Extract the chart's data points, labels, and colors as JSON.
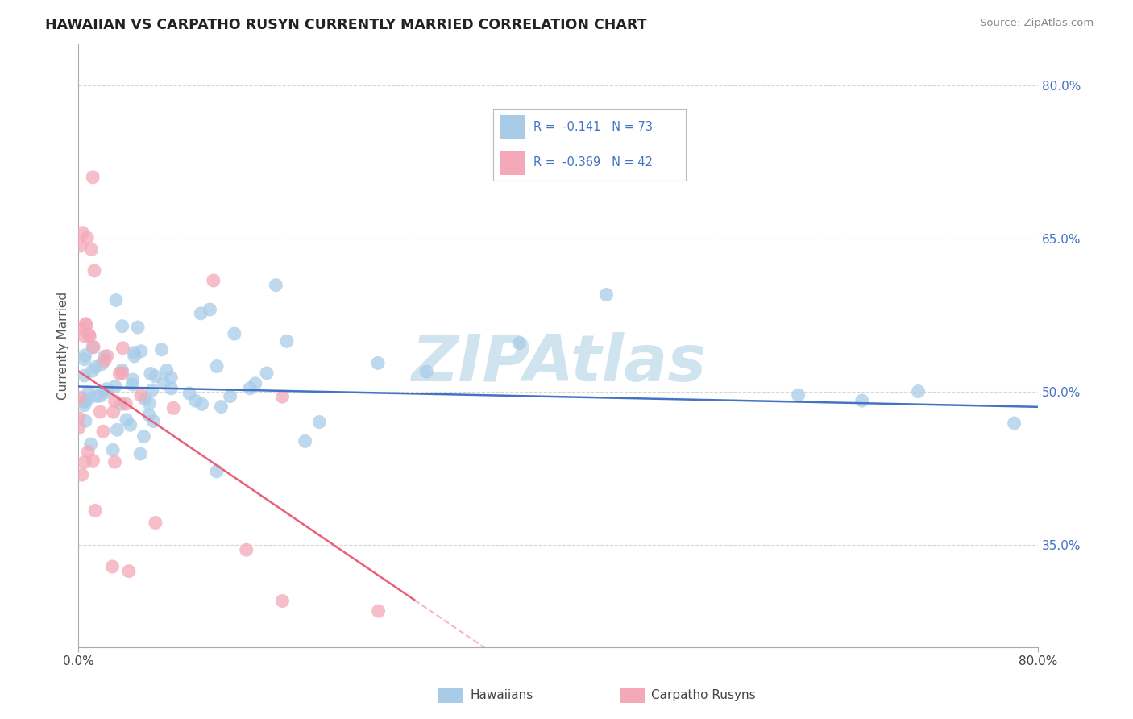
{
  "title": "HAWAIIAN VS CARPATHO RUSYN CURRENTLY MARRIED CORRELATION CHART",
  "source_text": "Source: ZipAtlas.com",
  "ylabel": "Currently Married",
  "right_yticks": [
    "80.0%",
    "65.0%",
    "50.0%",
    "35.0%"
  ],
  "right_ytick_vals": [
    0.8,
    0.65,
    0.5,
    0.35
  ],
  "xlim": [
    0.0,
    0.8
  ],
  "ylim": [
    0.25,
    0.84
  ],
  "hawaiian_R": -0.141,
  "hawaiian_N": 73,
  "rusyn_R": -0.369,
  "rusyn_N": 42,
  "hawaiian_color": "#a8cce8",
  "rusyn_color": "#f4a8b8",
  "hawaiian_line_color": "#4472c4",
  "rusyn_line_color": "#e8607a",
  "watermark": "ZIPAtlas",
  "watermark_color": "#d0e4f0",
  "background_color": "#ffffff",
  "grid_color": "#cccccc",
  "legend_text_color": "#4472c4",
  "legend_r1": "R =  -0.141",
  "legend_n1": "N = 73",
  "legend_r2": "R =  -0.369",
  "legend_n2": "N = 42"
}
